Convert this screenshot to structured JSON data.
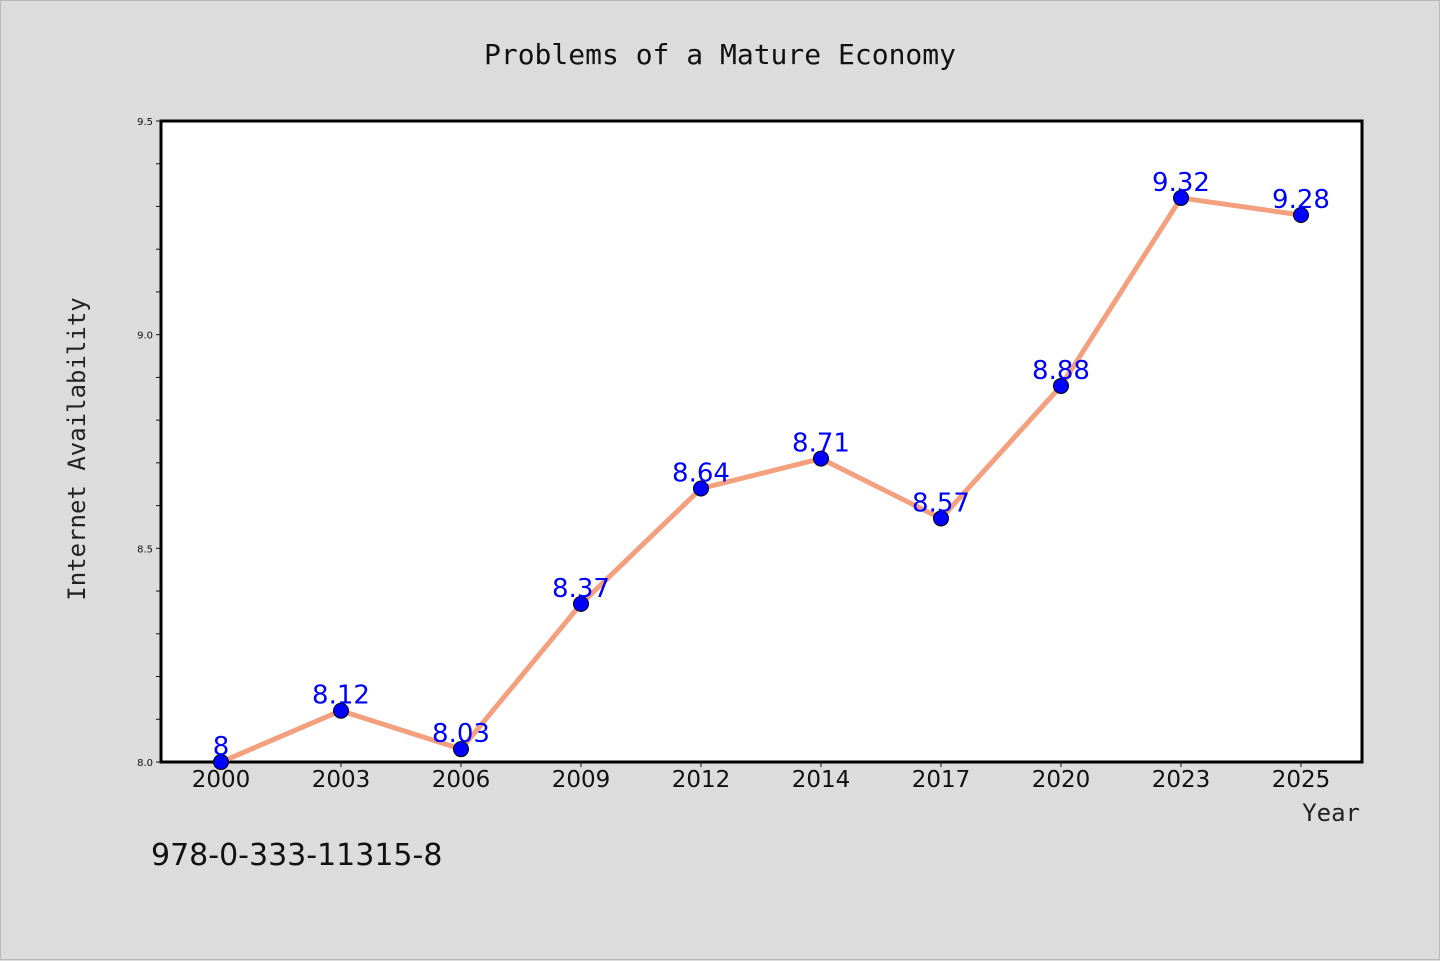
{
  "chart_data": {
    "type": "line",
    "title": "Problems of a Mature Economy",
    "xlabel": "Year",
    "ylabel": "Internet Availability",
    "categories": [
      "2000",
      "2003",
      "2006",
      "2009",
      "2012",
      "2014",
      "2017",
      "2020",
      "2023",
      "2025"
    ],
    "series": [
      {
        "values": [
          8,
          8.12,
          8.03,
          8.37,
          8.64,
          8.71,
          8.57,
          8.88,
          9.32,
          9.28
        ]
      }
    ],
    "data_labels": [
      "8",
      "8.12",
      "8.03",
      "8.37",
      "8.64",
      "8.71",
      "8.57",
      "8.88",
      "9.32",
      "9.28"
    ],
    "ylim": [
      8.0,
      9.5
    ],
    "y_ticks": [
      "8.0",
      "8.5",
      "9.0",
      "9.5"
    ],
    "grid": false,
    "legend": "none"
  },
  "footer": {
    "isbn": "978-0-333-11315-8"
  },
  "colors": {
    "background": "#dcdcdc",
    "plot_background": "#ffffff",
    "line": "#f4a07e",
    "marker": "#0000ff",
    "data_label": "#0000ff"
  }
}
